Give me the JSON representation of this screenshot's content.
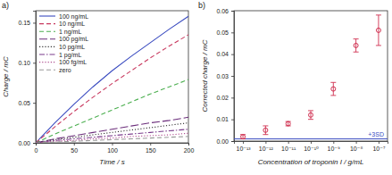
{
  "chart_data": [
    {
      "type": "line",
      "title": "a)",
      "x_label": "Time / s",
      "y_label": "Charge / mC",
      "x": [
        0,
        25,
        50,
        75,
        100,
        125,
        150,
        175,
        200
      ],
      "xlim": [
        0,
        200
      ],
      "xticks": [
        0,
        50,
        100,
        150,
        200
      ],
      "ylim": [
        0,
        0.165
      ],
      "yticks": [
        {
          "value": 0,
          "label": "0.00"
        },
        {
          "value": 0.05,
          "label": "0.05"
        },
        {
          "value": 0.1,
          "label": "0.10"
        },
        {
          "value": 0.15,
          "label": "0.15"
        }
      ],
      "legend": "upper left",
      "series": [
        {
          "name": "100 ng/mL",
          "color": "#3b4cc0",
          "line_style": "solid",
          "values": [
            0,
            0.025,
            0.048,
            0.07,
            0.09,
            0.108,
            0.125,
            0.142,
            0.158
          ]
        },
        {
          "name": "10 ng/mL",
          "color": "#c8385e",
          "line_style": "dashed",
          "values": [
            0,
            0.02,
            0.039,
            0.057,
            0.074,
            0.09,
            0.106,
            0.121,
            0.135
          ]
        },
        {
          "name": "1 ng/mL",
          "color": "#4caf50",
          "line_style": "dashed",
          "values": [
            0,
            0.011,
            0.021,
            0.031,
            0.041,
            0.051,
            0.061,
            0.07,
            0.079
          ]
        },
        {
          "name": "100 pg/mL",
          "color": "#6a2c7a",
          "line_style": "longdash",
          "values": [
            0,
            0.005,
            0.009,
            0.013,
            0.017,
            0.021,
            0.025,
            0.028,
            0.032
          ]
        },
        {
          "name": "10 pg/mL",
          "color": "#333333",
          "line_style": "dotted",
          "values": [
            0,
            0.004,
            0.007,
            0.01,
            0.013,
            0.016,
            0.019,
            0.022,
            0.025
          ]
        },
        {
          "name": "1 pg/mL",
          "color": "#7a3b8c",
          "line_style": "dashdot",
          "values": [
            0,
            0.003,
            0.005,
            0.007,
            0.009,
            0.011,
            0.013,
            0.015,
            0.017
          ]
        },
        {
          "name": "100 fg/mL",
          "color": "#b04f90",
          "line_style": "dotted",
          "values": [
            0,
            0.002,
            0.003,
            0.005,
            0.006,
            0.008,
            0.009,
            0.01,
            0.012
          ]
        },
        {
          "name": "zero",
          "color": "#999999",
          "line_style": "dashed",
          "values": [
            0,
            0.001,
            0.002,
            0.003,
            0.004,
            0.005,
            0.006,
            0.007,
            0.008
          ]
        }
      ]
    },
    {
      "type": "scatter",
      "title": "b)",
      "x_label": "Concentration of troponin I / g/mL",
      "y_label": "Corrected charge / mC",
      "log": "x",
      "x": [
        1e-13,
        1e-12,
        1e-11,
        1e-10,
        1e-09,
        1e-08,
        1e-07
      ],
      "values": [
        0.002,
        0.005,
        0.008,
        0.012,
        0.024,
        0.044,
        0.051
      ],
      "errors": [
        0.001,
        0.002,
        0.001,
        0.002,
        0.003,
        0.003,
        0.007
      ],
      "color": "#d03050",
      "marker": "circle",
      "xlim": [
        4e-14,
        2.5e-07
      ],
      "xticks": [
        {
          "value": 1e-13,
          "label": "10⁻¹³"
        },
        {
          "value": 1e-12,
          "label": "10⁻¹²"
        },
        {
          "value": 1e-11,
          "label": "10⁻¹¹"
        },
        {
          "value": 1e-10,
          "label": "10⁻¹⁰"
        },
        {
          "value": 1e-09,
          "label": "10⁻⁹"
        },
        {
          "value": 1e-08,
          "label": "10⁻⁸"
        },
        {
          "value": 1e-07,
          "label": "10⁻⁷"
        }
      ],
      "ylim": [
        0,
        0.06
      ],
      "yticks": [
        {
          "value": 0,
          "label": "0.00"
        },
        {
          "value": 0.01,
          "label": "0.01"
        },
        {
          "value": 0.02,
          "label": "0.02"
        },
        {
          "value": 0.03,
          "label": "0.03"
        },
        {
          "value": 0.04,
          "label": "0.04"
        },
        {
          "value": 0.05,
          "label": "0.05"
        },
        {
          "value": 0.06,
          "label": "0.06"
        }
      ],
      "annotations": [
        {
          "text": "+3SD",
          "y": 0.001,
          "color": "#3b4cc0"
        }
      ]
    }
  ]
}
